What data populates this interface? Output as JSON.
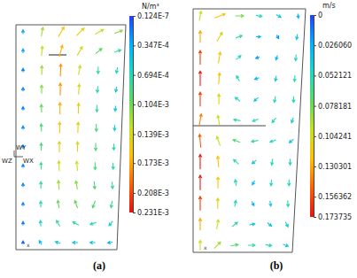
{
  "chart_data": [
    {
      "type": "vector_field",
      "panel_label": "(a)",
      "unit": "N/m³",
      "axis_triad": [
        "WY",
        "WZ",
        "WX"
      ],
      "corner_label": "x",
      "colorbar_lim": [
        1.24e-08,
        0.000231
      ],
      "colorbar_ticks": [
        {
          "value": 1.24e-08,
          "label": "0.124E-7"
        },
        {
          "value": 3.47e-05,
          "label": "0.347E-4"
        },
        {
          "value": 6.94e-05,
          "label": "0.694E-4"
        },
        {
          "value": 0.000104,
          "label": "0.104E-3"
        },
        {
          "value": 0.000139,
          "label": "0.139E-3"
        },
        {
          "value": 0.000173,
          "label": "0.173E-3"
        },
        {
          "value": 0.000208,
          "label": "0.208E-3"
        },
        {
          "value": 0.000231,
          "label": "0.231E-3"
        }
      ],
      "magnitude": [
        [
          3e-05,
          0.00012,
          0.00016,
          0.00015,
          0.00013,
          0.00011
        ],
        [
          3e-05,
          0.00013,
          0.00017,
          0.00014,
          0.0001,
          8e-05
        ],
        [
          2e-05,
          0.00012,
          0.00018,
          0.00013,
          8e-05,
          6e-05
        ],
        [
          2e-05,
          0.00011,
          0.00018,
          0.00014,
          7e-05,
          5e-05
        ],
        [
          2e-05,
          0.0001,
          0.00017,
          0.00015,
          8e-05,
          5e-05
        ],
        [
          2e-05,
          9e-05,
          0.00016,
          0.00015,
          9e-05,
          6e-05
        ],
        [
          2e-05,
          9e-05,
          0.00015,
          0.00014,
          9e-05,
          7e-05
        ],
        [
          2e-05,
          8e-05,
          0.00014,
          0.00013,
          9e-05,
          7e-05
        ],
        [
          2e-05,
          8e-05,
          0.00012,
          0.00011,
          9e-05,
          8e-05
        ],
        [
          2e-05,
          7e-05,
          0.0001,
          0.0001,
          9e-05,
          8e-05
        ],
        [
          2e-05,
          6e-05,
          8e-05,
          8e-05,
          7e-05,
          6e-05
        ],
        [
          1e-05,
          4e-05,
          5e-05,
          5e-05,
          5e-05,
          4e-05
        ]
      ],
      "angle": [
        [
          90,
          80,
          60,
          45,
          30,
          20
        ],
        [
          90,
          85,
          75,
          60,
          40,
          20
        ],
        [
          90,
          90,
          88,
          80,
          270,
          260
        ],
        [
          90,
          90,
          90,
          85,
          265,
          260
        ],
        [
          90,
          92,
          90,
          88,
          270,
          265
        ],
        [
          90,
          92,
          90,
          88,
          272,
          268
        ],
        [
          90,
          90,
          90,
          90,
          270,
          270
        ],
        [
          90,
          90,
          92,
          95,
          270,
          272
        ],
        [
          90,
          90,
          95,
          100,
          275,
          275
        ],
        [
          90,
          90,
          100,
          110,
          250,
          260
        ],
        [
          90,
          95,
          120,
          150,
          200,
          230
        ],
        [
          90,
          120,
          160,
          180,
          180,
          190
        ]
      ]
    },
    {
      "type": "vector_field",
      "panel_label": "(b)",
      "unit": "m/s",
      "corner_label": "x",
      "colorbar_lim": [
        0,
        0.173735
      ],
      "colorbar_ticks": [
        0,
        {
          "value": 0.02606,
          "label": "0.026060"
        },
        0.052121,
        0.078181,
        0.104241,
        0.130301,
        0.156362,
        0.173735
      ],
      "magnitude": [
        [
          0.1,
          0.12,
          0.08,
          0.05,
          0.04,
          0.03
        ],
        [
          0.13,
          0.11,
          0.06,
          0.03,
          0.02,
          0.04
        ],
        [
          0.16,
          0.12,
          0.05,
          0.02,
          0.03,
          0.05
        ],
        [
          0.17,
          0.12,
          0.05,
          0.03,
          0.04,
          0.05
        ],
        [
          0.16,
          0.11,
          0.05,
          0.04,
          0.05,
          0.05
        ],
        [
          0.14,
          0.1,
          0.06,
          0.05,
          0.05,
          0.04
        ],
        [
          0.15,
          0.1,
          0.07,
          0.06,
          0.05,
          0.04
        ],
        [
          0.17,
          0.12,
          0.06,
          0.04,
          0.05,
          0.05
        ],
        [
          0.17,
          0.12,
          0.05,
          0.03,
          0.05,
          0.05
        ],
        [
          0.16,
          0.11,
          0.05,
          0.03,
          0.04,
          0.05
        ],
        [
          0.13,
          0.1,
          0.06,
          0.04,
          0.04,
          0.04
        ],
        [
          0.1,
          0.09,
          0.07,
          0.06,
          0.05,
          0.04
        ]
      ],
      "angle": [
        [
          80,
          20,
          0,
          350,
          330,
          280
        ],
        [
          90,
          60,
          20,
          0,
          300,
          260
        ],
        [
          90,
          80,
          40,
          200,
          250,
          265
        ],
        [
          90,
          85,
          120,
          200,
          260,
          265
        ],
        [
          90,
          90,
          140,
          220,
          260,
          270
        ],
        [
          80,
          100,
          170,
          200,
          230,
          250
        ],
        [
          95,
          110,
          160,
          190,
          200,
          220
        ],
        [
          90,
          95,
          140,
          220,
          260,
          270
        ],
        [
          90,
          90,
          100,
          240,
          265,
          270
        ],
        [
          90,
          90,
          80,
          300,
          280,
          275
        ],
        [
          90,
          80,
          40,
          10,
          320,
          300
        ],
        [
          90,
          45,
          10,
          0,
          350,
          340
        ]
      ]
    }
  ]
}
